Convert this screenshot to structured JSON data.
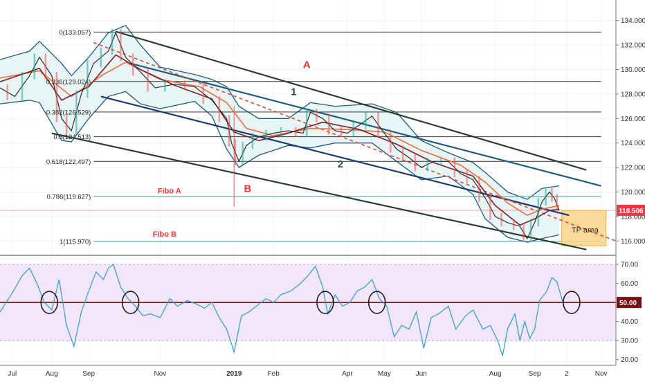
{
  "chart_data": [
    {
      "type": "line",
      "subtype": "candlestick-with-overlays",
      "price_axis": {
        "ticks": [
          "134.000",
          "132.000",
          "130.000",
          "128.000",
          "126.000",
          "124.000",
          "122.000",
          "120.000",
          "118.000",
          "116.000"
        ],
        "tick_values": [
          134,
          132,
          130,
          128,
          126,
          124,
          122,
          120,
          118,
          116
        ],
        "range": [
          115.0,
          135.0
        ],
        "current_price": "118.506",
        "current_price_value": 118.506
      },
      "x_ticks": [
        "Jul",
        "Aug",
        "Sep",
        "Nov",
        "2019",
        "Feb",
        "Apr",
        "May",
        "Jun",
        "Aug",
        "Sep",
        "2",
        "Nov"
      ],
      "x_tick_pos": [
        0.2,
        1.8,
        3.3,
        6.2,
        9.2,
        10.8,
        13.8,
        15.3,
        16.8,
        19.8,
        21.4,
        22.7,
        24.1
      ],
      "x_range": [
        -0.3,
        24.7
      ],
      "fibonacci_levels": [
        {
          "label": "0(133.057)",
          "value": 133.057
        },
        {
          "label": "0.236(129.024)",
          "value": 129.024
        },
        {
          "label": "0.382(126.529)",
          "value": 126.529
        },
        {
          "label": "0.5(124.513)",
          "value": 124.513
        },
        {
          "label": "0.618(122.497)",
          "value": 122.497
        },
        {
          "label": "0.786(119.627)",
          "value": 119.627
        },
        {
          "label": "1(115.970)",
          "value": 115.97
        }
      ],
      "annotations": {
        "fibo_a": "Fibo A",
        "fibo_b": "Fibo B",
        "point_a": "A",
        "point_b": "B",
        "line_1": "1",
        "line_2": "2",
        "tp_area": "TP area"
      },
      "price_path": [
        [
          -0.3,
          128.5
        ],
        [
          0.3,
          127.8
        ],
        [
          0.9,
          129.5
        ],
        [
          1.3,
          131.0
        ],
        [
          1.8,
          129.5
        ],
        [
          2.2,
          126.0
        ],
        [
          2.6,
          125.0
        ],
        [
          3.0,
          128.0
        ],
        [
          3.5,
          130.5
        ],
        [
          4.1,
          131.5
        ],
        [
          4.4,
          133.0
        ],
        [
          4.8,
          131.0
        ],
        [
          5.4,
          129.8
        ],
        [
          6.0,
          128.5
        ],
        [
          6.8,
          128.8
        ],
        [
          7.6,
          128.6
        ],
        [
          8.3,
          127.5
        ],
        [
          8.9,
          126.0
        ],
        [
          9.1,
          124.0
        ],
        [
          9.4,
          122.5
        ],
        [
          9.7,
          123.8
        ],
        [
          10.2,
          124.5
        ],
        [
          10.8,
          124.8
        ],
        [
          11.4,
          125.0
        ],
        [
          12.0,
          124.8
        ],
        [
          12.3,
          126.5
        ],
        [
          12.8,
          126.0
        ],
        [
          13.3,
          125.0
        ],
        [
          13.8,
          124.8
        ],
        [
          14.3,
          125.5
        ],
        [
          14.8,
          126.2
        ],
        [
          15.3,
          124.8
        ],
        [
          15.8,
          123.5
        ],
        [
          16.3,
          122.8
        ],
        [
          16.8,
          122.0
        ],
        [
          17.3,
          122.5
        ],
        [
          17.9,
          122.5
        ],
        [
          18.4,
          121.5
        ],
        [
          18.9,
          121.0
        ],
        [
          19.4,
          119.5
        ],
        [
          19.8,
          118.0
        ],
        [
          20.3,
          117.5
        ],
        [
          20.8,
          117.2
        ],
        [
          21.1,
          116.2
        ],
        [
          21.4,
          117.5
        ],
        [
          21.7,
          119.2
        ],
        [
          22.0,
          120.0
        ],
        [
          22.2,
          119.5
        ],
        [
          22.4,
          118.5
        ]
      ],
      "ma_red": [
        [
          -0.3,
          129.3
        ],
        [
          1.3,
          129.9
        ],
        [
          2.6,
          127.8
        ],
        [
          3.9,
          129.6
        ],
        [
          4.8,
          130.6
        ],
        [
          6.2,
          129.2
        ],
        [
          7.8,
          128.6
        ],
        [
          8.9,
          127.3
        ],
        [
          9.7,
          125.2
        ],
        [
          10.8,
          124.6
        ],
        [
          12.3,
          125.2
        ],
        [
          13.8,
          125.1
        ],
        [
          15.3,
          124.9
        ],
        [
          16.8,
          123.4
        ],
        [
          18.4,
          122.2
        ],
        [
          19.4,
          120.8
        ],
        [
          20.3,
          119.1
        ],
        [
          21.1,
          118.1
        ],
        [
          21.7,
          118.6
        ],
        [
          22.4,
          118.9
        ]
      ],
      "ma_dark": [
        [
          -0.3,
          129.0
        ],
        [
          1.3,
          130.1
        ],
        [
          2.2,
          127.5
        ],
        [
          3.3,
          128.6
        ],
        [
          4.4,
          131.2
        ],
        [
          5.4,
          130.0
        ],
        [
          6.8,
          128.7
        ],
        [
          8.3,
          127.6
        ],
        [
          9.2,
          124.9
        ],
        [
          10.2,
          124.2
        ],
        [
          11.4,
          124.8
        ],
        [
          12.8,
          125.7
        ],
        [
          14.3,
          125.1
        ],
        [
          15.8,
          123.9
        ],
        [
          17.3,
          122.4
        ],
        [
          18.9,
          121.3
        ],
        [
          19.8,
          118.9
        ],
        [
          20.8,
          117.3
        ],
        [
          21.4,
          117.8
        ],
        [
          22.0,
          118.5
        ],
        [
          22.4,
          118.6
        ]
      ],
      "bollinger_upper": [
        [
          -0.3,
          130.8
        ],
        [
          0.9,
          131.5
        ],
        [
          1.3,
          132.3
        ],
        [
          2.2,
          130.5
        ],
        [
          2.6,
          129.5
        ],
        [
          3.3,
          131.0
        ],
        [
          4.1,
          133.0
        ],
        [
          4.8,
          133.6
        ],
        [
          5.4,
          132.0
        ],
        [
          6.2,
          130.2
        ],
        [
          7.6,
          129.6
        ],
        [
          8.3,
          129.2
        ],
        [
          8.9,
          128.6
        ],
        [
          9.4,
          127.0
        ],
        [
          10.2,
          126.0
        ],
        [
          11.4,
          126.0
        ],
        [
          12.3,
          127.3
        ],
        [
          13.3,
          127.0
        ],
        [
          14.8,
          127.2
        ],
        [
          15.8,
          126.5
        ],
        [
          16.8,
          124.2
        ],
        [
          17.9,
          123.2
        ],
        [
          18.9,
          122.4
        ],
        [
          19.4,
          121.6
        ],
        [
          20.3,
          120.0
        ],
        [
          21.1,
          119.4
        ],
        [
          21.7,
          120.3
        ],
        [
          22.4,
          120.5
        ]
      ],
      "bollinger_lower": [
        [
          -0.3,
          127.2
        ],
        [
          0.9,
          127.5
        ],
        [
          1.3,
          127.3
        ],
        [
          2.2,
          124.2
        ],
        [
          2.6,
          124.1
        ],
        [
          3.3,
          126.0
        ],
        [
          4.1,
          127.8
        ],
        [
          4.8,
          128.2
        ],
        [
          5.4,
          127.2
        ],
        [
          6.2,
          126.8
        ],
        [
          7.6,
          127.4
        ],
        [
          8.3,
          126.2
        ],
        [
          8.9,
          123.5
        ],
        [
          9.4,
          122.0
        ],
        [
          10.2,
          123.0
        ],
        [
          11.4,
          123.8
        ],
        [
          12.3,
          123.6
        ],
        [
          13.3,
          124.0
        ],
        [
          14.8,
          124.0
        ],
        [
          15.8,
          122.5
        ],
        [
          16.8,
          121.0
        ],
        [
          17.9,
          121.3
        ],
        [
          18.9,
          119.8
        ],
        [
          19.4,
          117.8
        ],
        [
          20.3,
          116.3
        ],
        [
          21.1,
          115.9
        ],
        [
          21.7,
          116.2
        ],
        [
          22.4,
          116.5
        ]
      ],
      "channel_lines": [
        {
          "name": "A-upper",
          "from": [
            4.4,
            133.1
          ],
          "to": [
            23.5,
            121.8
          ],
          "color": "#2e3b2e"
        },
        {
          "name": "inner-1",
          "from": [
            5.0,
            130.5
          ],
          "to": [
            24.1,
            120.5
          ],
          "color": "#1f5a80"
        },
        {
          "name": "inner-2",
          "from": [
            3.8,
            127.8
          ],
          "to": [
            22.8,
            118.1
          ],
          "color": "#1b3a70"
        },
        {
          "name": "lower",
          "from": [
            1.8,
            124.8
          ],
          "to": [
            23.5,
            115.3
          ],
          "color": "#2e3b2e"
        }
      ],
      "dashed_trend": {
        "from": [
          3.5,
          132.2
        ],
        "to": [
          24.7,
          116.0
        ],
        "color": "#e0473c"
      },
      "b_wick": {
        "x": 9.2,
        "from": 127.0,
        "to": 118.8
      },
      "tp_zone": {
        "x0": 22.5,
        "x1": 24.3,
        "y0": 115.6,
        "y1": 118.5
      }
    },
    {
      "type": "line",
      "subtype": "oscillator",
      "axis_ticks": [
        "70.00",
        "60.00",
        "40.00",
        "30.00",
        "20.00"
      ],
      "tick_values": [
        70,
        60,
        40,
        30,
        20
      ],
      "range": [
        17,
        74
      ],
      "band": [
        30,
        70
      ],
      "midline": {
        "label": "50.00",
        "value": 50
      },
      "circle_markers_x": [
        1.7,
        5.0,
        12.9,
        15.0,
        22.9
      ],
      "series": [
        [
          -0.3,
          45
        ],
        [
          0.2,
          55
        ],
        [
          0.6,
          64
        ],
        [
          0.9,
          68
        ],
        [
          1.2,
          60
        ],
        [
          1.5,
          50
        ],
        [
          1.8,
          46
        ],
        [
          2.1,
          62
        ],
        [
          2.4,
          38
        ],
        [
          2.7,
          27
        ],
        [
          3.0,
          45
        ],
        [
          3.3,
          56
        ],
        [
          3.6,
          66
        ],
        [
          3.9,
          62
        ],
        [
          4.1,
          68
        ],
        [
          4.3,
          70
        ],
        [
          4.6,
          58
        ],
        [
          4.9,
          52
        ],
        [
          5.2,
          48
        ],
        [
          5.5,
          43
        ],
        [
          5.8,
          44
        ],
        [
          6.2,
          42
        ],
        [
          6.6,
          52
        ],
        [
          6.9,
          48
        ],
        [
          7.3,
          51
        ],
        [
          7.7,
          49
        ],
        [
          8.0,
          47
        ],
        [
          8.3,
          50
        ],
        [
          8.6,
          42
        ],
        [
          8.9,
          36
        ],
        [
          9.2,
          24
        ],
        [
          9.5,
          43
        ],
        [
          9.8,
          45
        ],
        [
          10.1,
          48
        ],
        [
          10.5,
          52
        ],
        [
          10.8,
          50
        ],
        [
          11.1,
          54
        ],
        [
          11.5,
          56
        ],
        [
          11.9,
          60
        ],
        [
          12.2,
          64
        ],
        [
          12.5,
          69
        ],
        [
          12.8,
          58
        ],
        [
          13.0,
          44
        ],
        [
          13.3,
          54
        ],
        [
          13.6,
          48
        ],
        [
          13.9,
          50
        ],
        [
          14.2,
          56
        ],
        [
          14.5,
          58
        ],
        [
          14.8,
          62
        ],
        [
          15.1,
          52
        ],
        [
          15.4,
          48
        ],
        [
          15.7,
          32
        ],
        [
          16.0,
          38
        ],
        [
          16.3,
          36
        ],
        [
          16.6,
          45
        ],
        [
          16.9,
          26
        ],
        [
          17.2,
          42
        ],
        [
          17.5,
          44
        ],
        [
          17.9,
          48
        ],
        [
          18.2,
          36
        ],
        [
          18.6,
          43
        ],
        [
          18.9,
          46
        ],
        [
          19.3,
          36
        ],
        [
          19.6,
          38
        ],
        [
          19.9,
          30
        ],
        [
          20.1,
          22
        ],
        [
          20.3,
          36
        ],
        [
          20.6,
          44
        ],
        [
          20.8,
          30
        ],
        [
          21.0,
          40
        ],
        [
          21.2,
          31
        ],
        [
          21.4,
          36
        ],
        [
          21.6,
          51
        ],
        [
          21.9,
          56
        ],
        [
          22.1,
          63
        ],
        [
          22.3,
          61
        ],
        [
          22.5,
          52
        ],
        [
          22.6,
          48
        ]
      ]
    }
  ],
  "colors": {
    "price_line": "#2c2c2c",
    "ma_red": "#ef6a3a",
    "ma_dark": "#7a1f2b",
    "bollinger": "#1f5a80",
    "bollinger_fill": "#e8f5f5",
    "fib_line": "#333333",
    "fib_alt_line": "#3aa39a",
    "annotation_red": "#e53935",
    "annotation_green": "#2e4d3a",
    "tp_fill": "#f9d48a",
    "tp_border": "#f0b040",
    "price_tag": "#f23645",
    "osc_band": "#f3e6fb",
    "osc_line": "#3aa0cc",
    "osc_mid": "#7a1f1f",
    "osc_mid_tag": "#7a1010"
  }
}
